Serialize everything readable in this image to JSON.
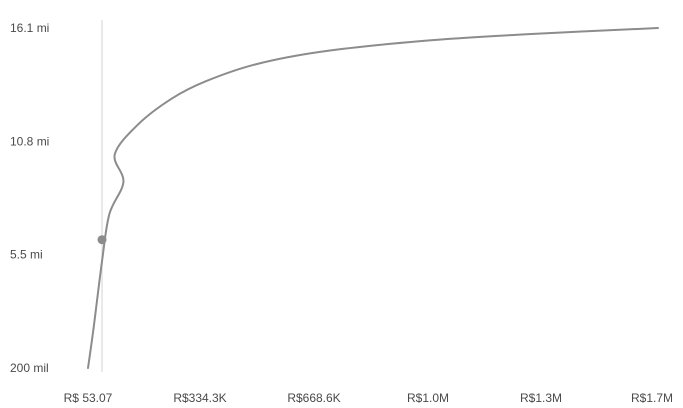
{
  "chart_data": {
    "type": "line",
    "title": "",
    "xlabel": "",
    "ylabel": "",
    "y_ticks": [
      {
        "value": 0.2,
        "label": "200 mil"
      },
      {
        "value": 5.5,
        "label": "5.5 mi"
      },
      {
        "value": 10.8,
        "label": "10.8 mi"
      },
      {
        "value": 16.1,
        "label": "16.1 mi"
      }
    ],
    "x_ticks": [
      {
        "value": 5.307e-05,
        "label": "R$ 53.07"
      },
      {
        "value": 0.3343,
        "label": "R$334.3K"
      },
      {
        "value": 0.6686,
        "label": "R$668.6K"
      },
      {
        "value": 1.0,
        "label": "R$1.0M"
      },
      {
        "value": 1.3,
        "label": "R$1.3M"
      },
      {
        "value": 1.7,
        "label": "R$1.7M"
      }
    ],
    "xlim": [
      0,
      1.7
    ],
    "ylim": [
      0.2,
      16.1
    ],
    "series": [
      {
        "color": "#8c8c8c",
        "points": [
          [
            5.307e-05,
            0.2
          ],
          [
            0.005,
            2.1
          ],
          [
            0.015,
            5.2
          ],
          [
            0.025,
            7.4
          ],
          [
            0.04,
            8.9
          ],
          [
            0.08,
            10.2
          ],
          [
            0.15,
            11.6
          ],
          [
            0.25,
            12.8
          ],
          [
            0.35,
            13.6
          ],
          [
            0.5,
            14.4
          ],
          [
            0.7,
            15.0
          ],
          [
            1.0,
            15.5
          ],
          [
            1.3,
            15.8
          ],
          [
            1.7,
            16.1
          ]
        ]
      }
    ],
    "highlight": {
      "x": 5.307e-05,
      "y": 6.2
    },
    "grid": false,
    "colors": {
      "line": "#8c8c8c",
      "marker": "#8c8c8c",
      "crosshair": "#e2e2e2",
      "text": "#4a4a4a"
    }
  }
}
